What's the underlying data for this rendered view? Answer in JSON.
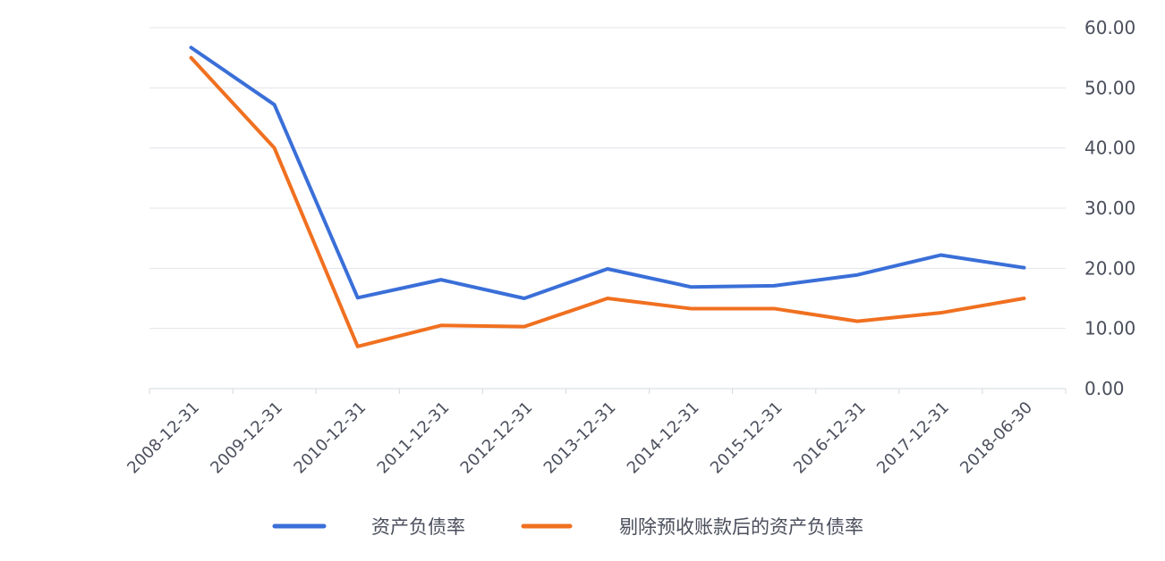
{
  "chart_data": {
    "type": "line",
    "categories": [
      "2008-12-31",
      "2009-12-31",
      "2010-12-31",
      "2011-12-31",
      "2012-12-31",
      "2013-12-31",
      "2014-12-31",
      "2015-12-31",
      "2016-12-31",
      "2017-12-31",
      "2018-06-30"
    ],
    "series": [
      {
        "name": "资产负债率",
        "color": "#3a6fd8",
        "values": [
          56.7,
          47.2,
          15.1,
          18.1,
          15.0,
          19.9,
          16.9,
          17.1,
          18.9,
          22.2,
          20.1
        ]
      },
      {
        "name": "剔除预收账款后的资产负债率",
        "color": "#f07020",
        "values": [
          55.0,
          40.0,
          7.0,
          10.5,
          10.3,
          15.0,
          13.3,
          13.3,
          11.2,
          12.6,
          15.0
        ]
      }
    ],
    "y_axis": {
      "position": "right",
      "min": 0,
      "max": 60,
      "ticks": [
        "0.00",
        "10.00",
        "20.00",
        "30.00",
        "40.00",
        "50.00",
        "60.00"
      ]
    },
    "title": "",
    "xlabel": "",
    "ylabel": "",
    "grid": true,
    "legend": "bottom-center"
  }
}
